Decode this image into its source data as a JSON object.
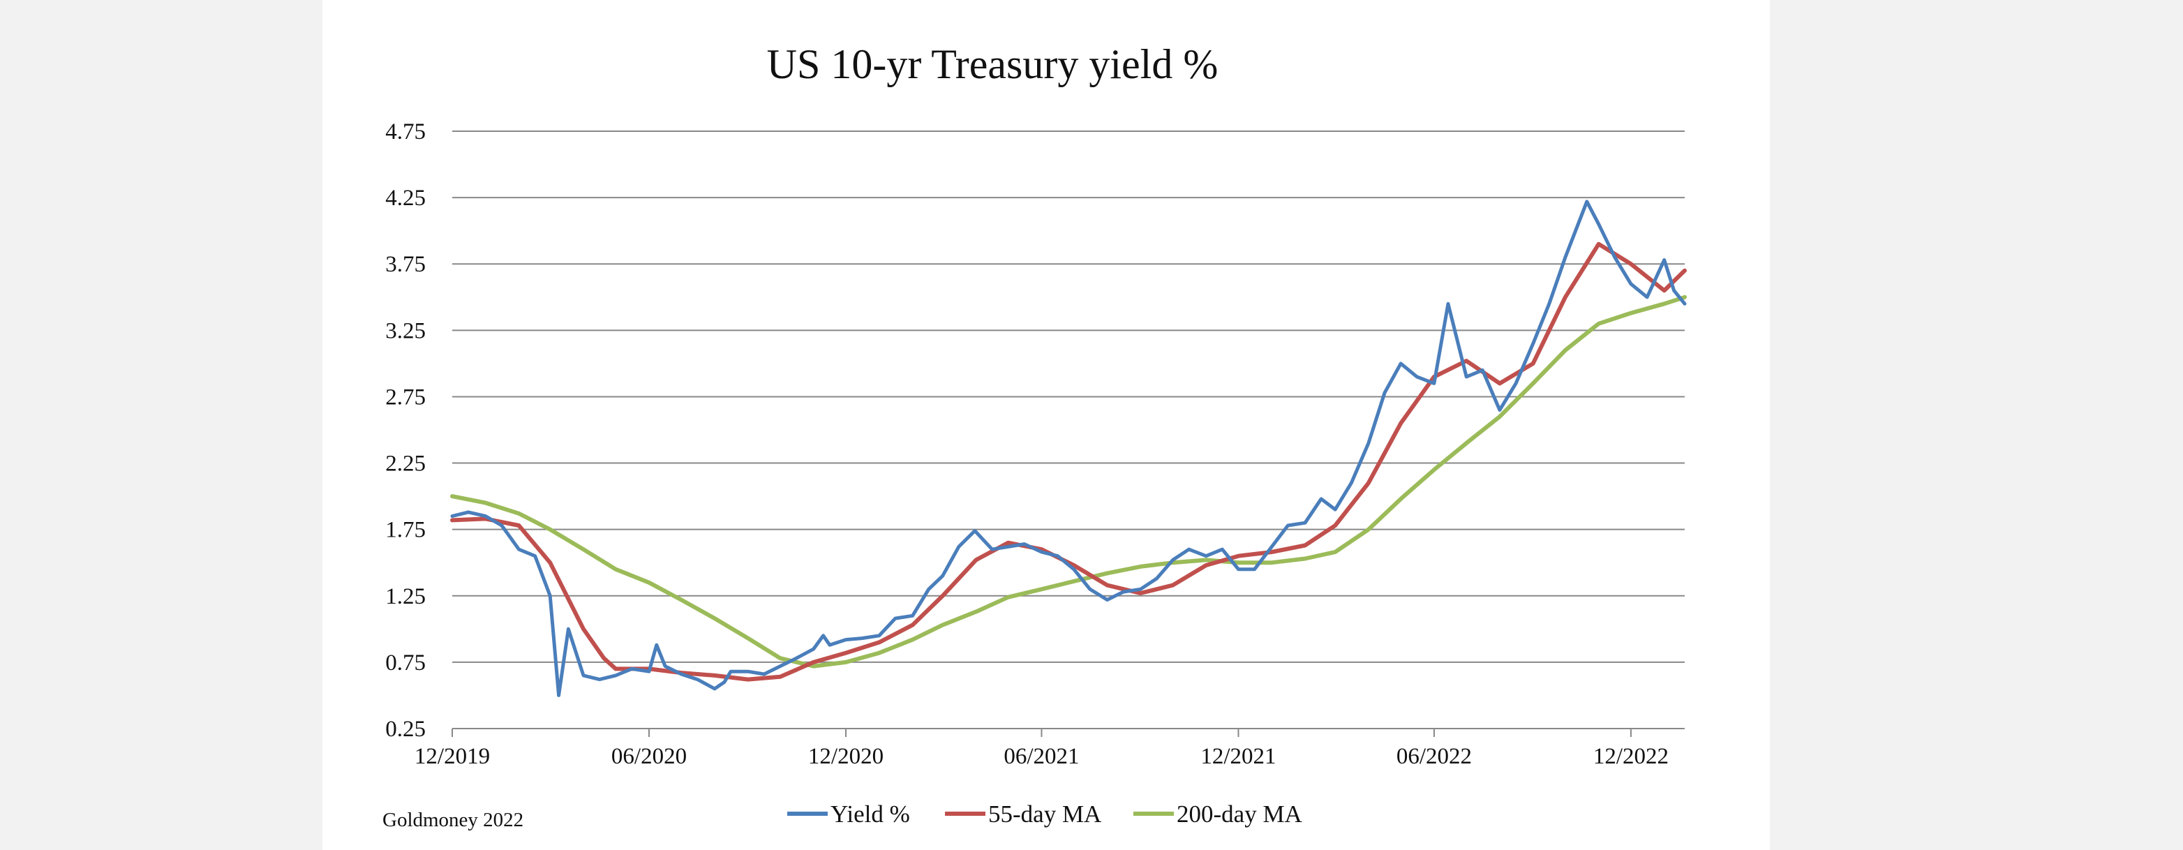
{
  "colors": {
    "page_background": "#f2f2f2",
    "card_background": "#ffffff",
    "gridline": "#888888",
    "text": "#111111"
  },
  "source": "Goldmoney 2022",
  "chart_data": {
    "type": "line",
    "title": "US 10-yr Treasury yield %",
    "xlabel": "",
    "ylabel": "",
    "ylim": [
      0.25,
      4.75
    ],
    "yticks": [
      "0.25",
      "0.75",
      "1.25",
      "1.75",
      "2.25",
      "2.75",
      "3.25",
      "3.75",
      "4.25",
      "4.75"
    ],
    "xlim": [
      "2019-12-01",
      "2023-01-20"
    ],
    "xticks": [
      {
        "date": "2019-12-01",
        "label": "12/2019"
      },
      {
        "date": "2020-06-01",
        "label": "06/2020"
      },
      {
        "date": "2020-12-01",
        "label": "12/2020"
      },
      {
        "date": "2021-06-01",
        "label": "06/2021"
      },
      {
        "date": "2021-12-01",
        "label": "12/2021"
      },
      {
        "date": "2022-06-01",
        "label": "06/2022"
      },
      {
        "date": "2022-12-01",
        "label": "12/2022"
      }
    ],
    "grid": true,
    "legend": "bottom-center",
    "series": [
      {
        "name": "Yield %",
        "color": "#4a7ebb",
        "x": [
          "2019-12-01",
          "2019-12-16",
          "2020-01-01",
          "2020-01-16",
          "2020-02-01",
          "2020-02-16",
          "2020-03-01",
          "2020-03-09",
          "2020-03-18",
          "2020-04-01",
          "2020-04-16",
          "2020-05-01",
          "2020-05-16",
          "2020-06-01",
          "2020-06-08",
          "2020-06-16",
          "2020-07-01",
          "2020-07-16",
          "2020-08-01",
          "2020-08-10",
          "2020-08-16",
          "2020-09-01",
          "2020-09-16",
          "2020-10-01",
          "2020-10-16",
          "2020-11-01",
          "2020-11-10",
          "2020-11-16",
          "2020-12-01",
          "2020-12-16",
          "2021-01-01",
          "2021-01-16",
          "2021-02-01",
          "2021-02-16",
          "2021-03-01",
          "2021-03-16",
          "2021-03-31",
          "2021-04-16",
          "2021-05-01",
          "2021-05-16",
          "2021-06-01",
          "2021-06-16",
          "2021-07-01",
          "2021-07-16",
          "2021-08-01",
          "2021-08-16",
          "2021-09-01",
          "2021-09-16",
          "2021-10-01",
          "2021-10-16",
          "2021-11-01",
          "2021-11-16",
          "2021-12-01",
          "2021-12-16",
          "2022-01-01",
          "2022-01-16",
          "2022-02-01",
          "2022-02-16",
          "2022-03-01",
          "2022-03-16",
          "2022-04-01",
          "2022-04-16",
          "2022-05-01",
          "2022-05-16",
          "2022-06-01",
          "2022-06-14",
          "2022-07-01",
          "2022-07-16",
          "2022-08-01",
          "2022-08-16",
          "2022-09-01",
          "2022-09-16",
          "2022-10-01",
          "2022-10-21",
          "2022-11-01",
          "2022-11-16",
          "2022-12-01",
          "2022-12-16",
          "2023-01-01",
          "2023-01-10",
          "2023-01-20"
        ],
        "values": [
          1.85,
          1.88,
          1.85,
          1.78,
          1.6,
          1.55,
          1.25,
          0.5,
          1.0,
          0.65,
          0.62,
          0.65,
          0.7,
          0.68,
          0.88,
          0.72,
          0.66,
          0.62,
          0.55,
          0.6,
          0.68,
          0.68,
          0.66,
          0.72,
          0.78,
          0.85,
          0.95,
          0.88,
          0.92,
          0.93,
          0.95,
          1.08,
          1.1,
          1.3,
          1.4,
          1.62,
          1.74,
          1.6,
          1.62,
          1.64,
          1.58,
          1.55,
          1.45,
          1.3,
          1.22,
          1.28,
          1.3,
          1.38,
          1.52,
          1.6,
          1.55,
          1.6,
          1.45,
          1.45,
          1.62,
          1.78,
          1.8,
          1.98,
          1.9,
          2.1,
          2.4,
          2.78,
          3.0,
          2.9,
          2.85,
          3.45,
          2.9,
          2.95,
          2.65,
          2.85,
          3.15,
          3.45,
          3.8,
          4.22,
          4.05,
          3.8,
          3.6,
          3.5,
          3.78,
          3.55,
          3.45
        ]
      },
      {
        "name": "55-day MA",
        "color": "#c0504d",
        "x": [
          "2019-12-01",
          "2020-01-01",
          "2020-02-01",
          "2020-03-01",
          "2020-04-01",
          "2020-04-20",
          "2020-05-01",
          "2020-06-01",
          "2020-07-01",
          "2020-08-01",
          "2020-09-01",
          "2020-10-01",
          "2020-11-01",
          "2020-12-01",
          "2021-01-01",
          "2021-02-01",
          "2021-03-01",
          "2021-04-01",
          "2021-05-01",
          "2021-06-01",
          "2021-07-01",
          "2021-08-01",
          "2021-09-01",
          "2021-10-01",
          "2021-11-01",
          "2021-12-01",
          "2022-01-01",
          "2022-02-01",
          "2022-03-01",
          "2022-04-01",
          "2022-05-01",
          "2022-06-01",
          "2022-07-01",
          "2022-08-01",
          "2022-09-01",
          "2022-10-01",
          "2022-11-01",
          "2022-12-01",
          "2023-01-01",
          "2023-01-20"
        ],
        "values": [
          1.82,
          1.83,
          1.78,
          1.5,
          1.0,
          0.78,
          0.7,
          0.7,
          0.67,
          0.65,
          0.62,
          0.64,
          0.75,
          0.82,
          0.9,
          1.03,
          1.25,
          1.52,
          1.65,
          1.6,
          1.48,
          1.33,
          1.27,
          1.33,
          1.48,
          1.55,
          1.58,
          1.63,
          1.78,
          2.1,
          2.55,
          2.9,
          3.02,
          2.85,
          3.0,
          3.5,
          3.9,
          3.75,
          3.55,
          3.7
        ]
      },
      {
        "name": "200-day MA",
        "color": "#9bbb59",
        "x": [
          "2019-12-01",
          "2020-01-01",
          "2020-02-01",
          "2020-03-01",
          "2020-04-01",
          "2020-05-01",
          "2020-06-01",
          "2020-07-01",
          "2020-08-01",
          "2020-09-01",
          "2020-10-01",
          "2020-11-01",
          "2020-12-01",
          "2021-01-01",
          "2021-02-01",
          "2021-03-01",
          "2021-04-01",
          "2021-05-01",
          "2021-06-01",
          "2021-07-01",
          "2021-08-01",
          "2021-09-01",
          "2021-10-01",
          "2021-11-01",
          "2021-12-01",
          "2022-01-01",
          "2022-02-01",
          "2022-03-01",
          "2022-04-01",
          "2022-05-01",
          "2022-06-01",
          "2022-07-01",
          "2022-08-01",
          "2022-09-01",
          "2022-10-01",
          "2022-11-01",
          "2022-12-01",
          "2023-01-01",
          "2023-01-20"
        ],
        "values": [
          2.0,
          1.95,
          1.87,
          1.75,
          1.6,
          1.45,
          1.35,
          1.22,
          1.08,
          0.93,
          0.78,
          0.72,
          0.75,
          0.82,
          0.92,
          1.03,
          1.13,
          1.24,
          1.3,
          1.36,
          1.42,
          1.47,
          1.5,
          1.52,
          1.5,
          1.5,
          1.53,
          1.58,
          1.75,
          1.98,
          2.2,
          2.4,
          2.6,
          2.85,
          3.1,
          3.3,
          3.38,
          3.45,
          3.5
        ]
      }
    ]
  }
}
